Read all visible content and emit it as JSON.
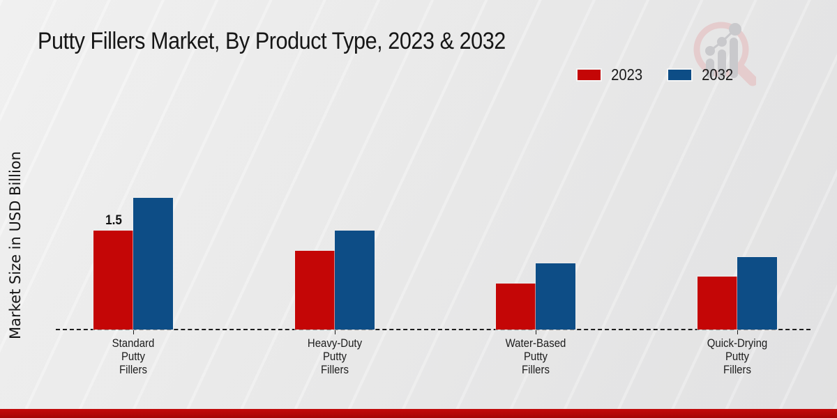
{
  "title": "Putty Fillers Market, By Product Type, 2023 & 2032",
  "ylabel": "Market Size in USD Billion",
  "colors": {
    "series_2023": "#c40606",
    "series_2032": "#0d4d86",
    "footer_bar": "#b00707",
    "axis": "#1c1c1c"
  },
  "legend": {
    "position": "top-right",
    "items": [
      {
        "label": "2023",
        "color": "#c40606"
      },
      {
        "label": "2032",
        "color": "#0d4d86"
      }
    ]
  },
  "branding": {
    "logo": "magnifier-growth-chart-logo"
  },
  "chart_data": {
    "type": "bar",
    "title": "Putty Fillers Market, By Product Type, 2023 & 2032",
    "xlabel": "",
    "ylabel": "Market Size in USD Billion",
    "categories": [
      "Standard Putty Fillers",
      "Heavy-Duty Putty Fillers",
      "Water-Based Putty Fillers",
      "Quick-Drying Putty Fillers"
    ],
    "series": [
      {
        "name": "2023",
        "color": "#c40606",
        "values": [
          1.5,
          1.2,
          0.7,
          0.8
        ]
      },
      {
        "name": "2032",
        "color": "#0d4d86",
        "values": [
          2.0,
          1.5,
          1.0,
          1.1
        ]
      }
    ],
    "annotations": [
      {
        "series_index": 0,
        "category_index": 0,
        "text": "1.5"
      }
    ],
    "ylim": [
      0,
      2.2
    ],
    "grid": false,
    "y_axis_ticks_visible": false,
    "baseline_style": "dashed",
    "legend_position": "top-right"
  }
}
